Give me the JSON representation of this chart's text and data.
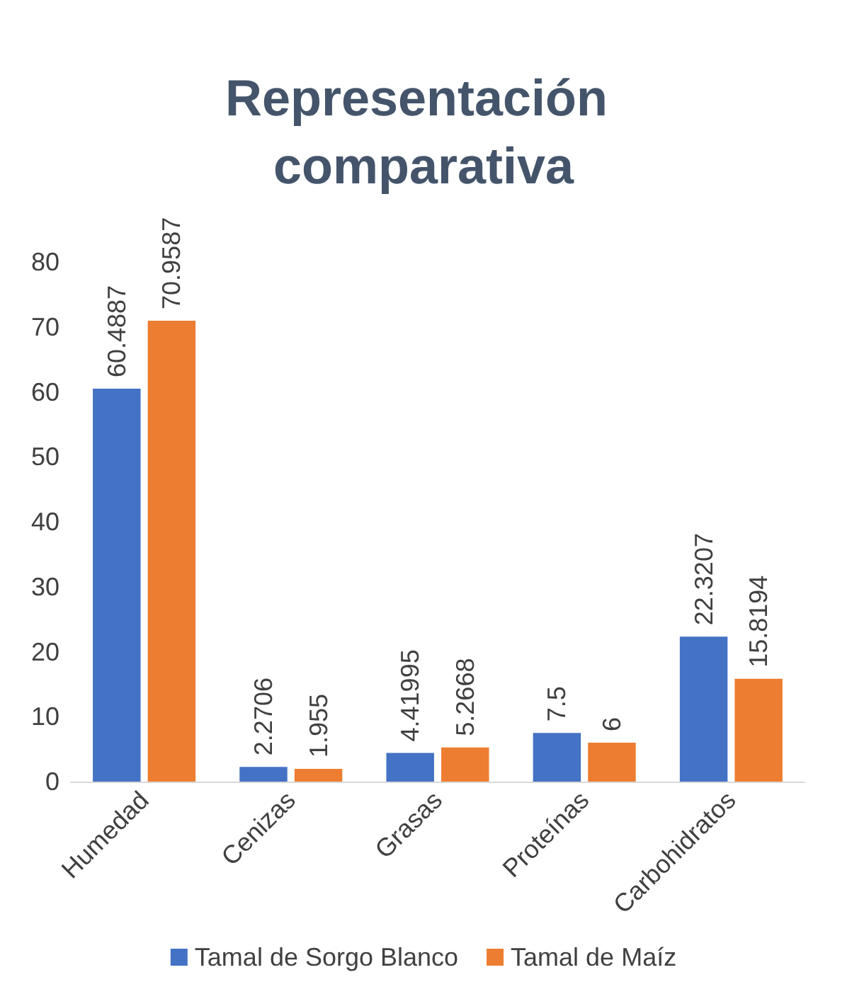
{
  "chart_data": {
    "type": "bar",
    "title": "Representación comparativa",
    "categories": [
      "Humedad",
      "Cenizas",
      "Grasas",
      "Proteínas",
      "Carbohidratos"
    ],
    "series": [
      {
        "name": "Tamal de Sorgo Blanco",
        "color": "#4472c4",
        "values": [
          60.4887,
          2.2706,
          4.41995,
          7.5,
          22.3207
        ]
      },
      {
        "name": "Tamal de Maíz",
        "color": "#ed7d31",
        "values": [
          70.9587,
          1.955,
          5.2668,
          6,
          15.8194
        ]
      }
    ],
    "ylim": [
      0,
      80
    ],
    "yticks": [
      0,
      10,
      20,
      30,
      40,
      50,
      60,
      70,
      80
    ],
    "grid": false,
    "legend": "bottom",
    "data_labels": true
  }
}
